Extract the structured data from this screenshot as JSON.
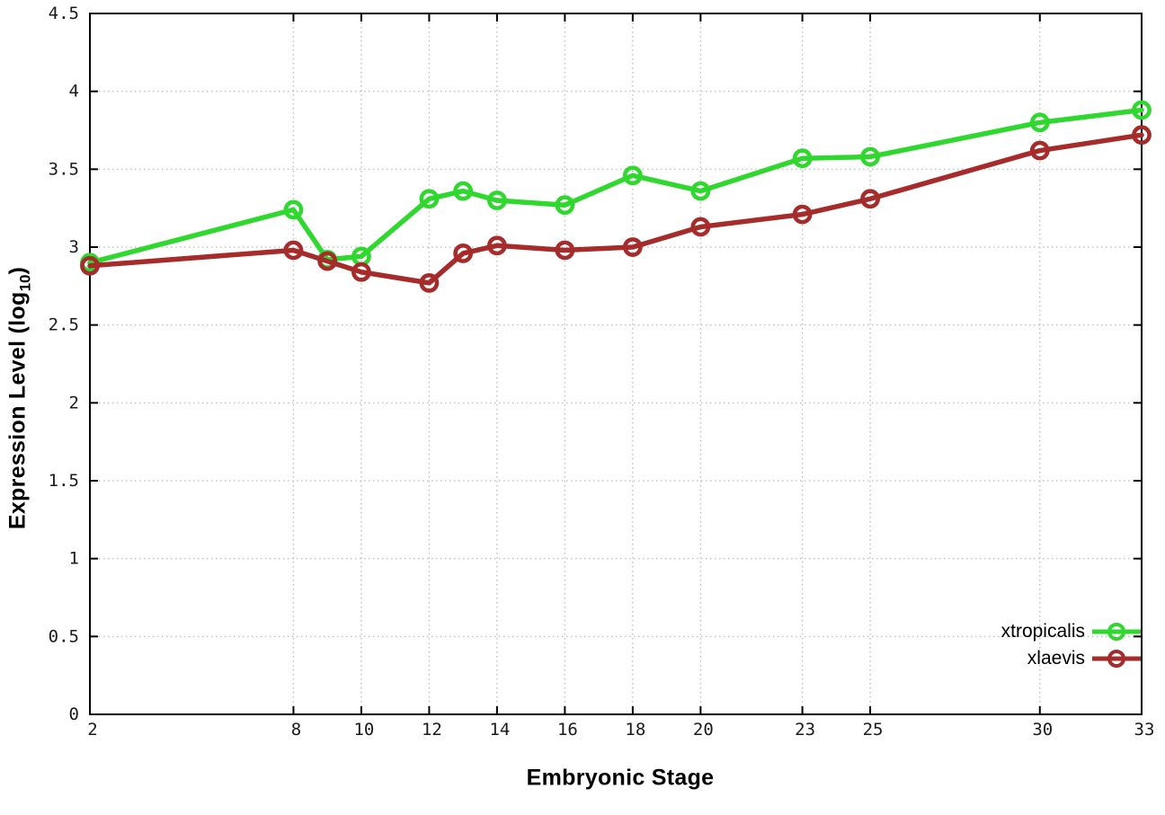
{
  "figure": {
    "background": "#ffffff",
    "axis_color": "#000000",
    "grid_color": "#c3c3c3",
    "tick_label_color": "#1a1a1a"
  },
  "chart_data": {
    "type": "line",
    "title": "",
    "xlabel": "Embryonic Stage",
    "ylabel": {
      "prefix": "Expression Level (log",
      "sub": "10",
      "suffix": ")"
    },
    "x": [
      2,
      8,
      9,
      10,
      12,
      13,
      14,
      16,
      18,
      20,
      23,
      25,
      30,
      33
    ],
    "x_tick_labels": [
      "2",
      "8",
      "10",
      "12",
      "14",
      "16",
      "18",
      "20",
      "23",
      "25",
      "30",
      "33"
    ],
    "x_tick_values": [
      2,
      8,
      10,
      12,
      14,
      16,
      18,
      20,
      23,
      25,
      30,
      33
    ],
    "y_tick_labels": [
      "0",
      "0.5",
      "1",
      "1.5",
      "2",
      "2.5",
      "3",
      "3.5",
      "4",
      "4.5"
    ],
    "y_tick_values": [
      0,
      0.5,
      1,
      1.5,
      2,
      2.5,
      3,
      3.5,
      4,
      4.5
    ],
    "xlim": [
      2,
      33
    ],
    "ylim": [
      0,
      4.5
    ],
    "grid": true,
    "legend_position": "bottom-right",
    "marker": "open-circle",
    "series": [
      {
        "name": "xtropicalis",
        "color": "#2fd72f",
        "values": [
          2.9,
          3.24,
          2.92,
          2.94,
          3.31,
          3.36,
          3.3,
          3.27,
          3.46,
          3.36,
          3.57,
          3.58,
          3.8,
          3.88
        ]
      },
      {
        "name": "xlaevis",
        "color": "#a62b2b",
        "values": [
          2.88,
          2.98,
          2.91,
          2.84,
          2.77,
          2.96,
          3.01,
          2.98,
          3.0,
          3.13,
          3.21,
          3.31,
          3.62,
          3.72
        ]
      }
    ]
  }
}
